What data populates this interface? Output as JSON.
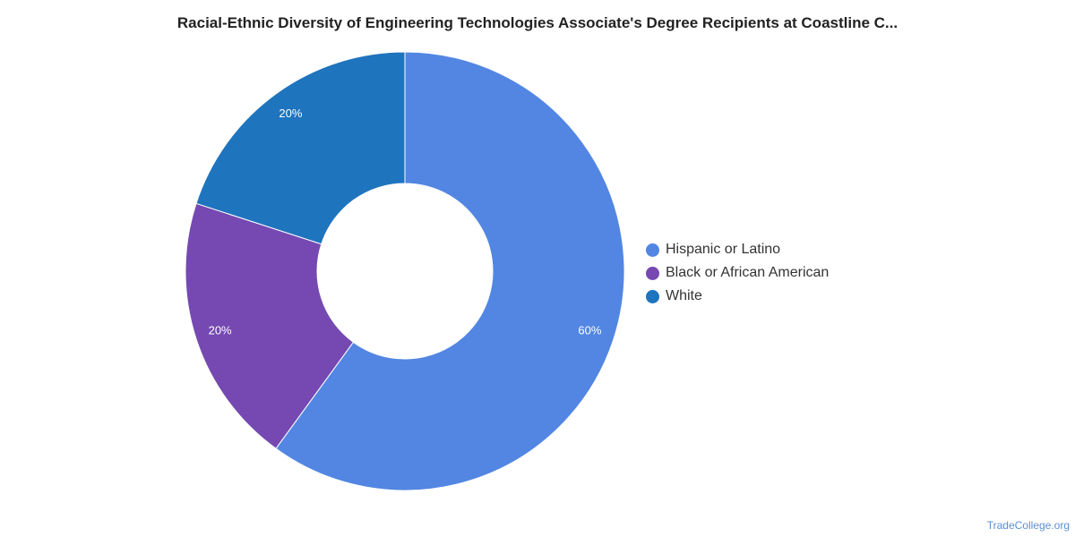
{
  "chart_data": {
    "type": "pie",
    "title": "Racial-Ethnic Diversity of Engineering Technologies Associate's Degree Recipients at Coastline C...",
    "categories": [
      "Hispanic or Latino",
      "Black or African American",
      "White"
    ],
    "values": [
      60,
      20,
      20
    ],
    "labels": [
      "60%",
      "20%",
      "20%"
    ],
    "colors": [
      "#5286e2",
      "#7549b1",
      "#1f74be"
    ],
    "donut": true,
    "legend_position": "right"
  },
  "watermark": "TradeCollege.org"
}
